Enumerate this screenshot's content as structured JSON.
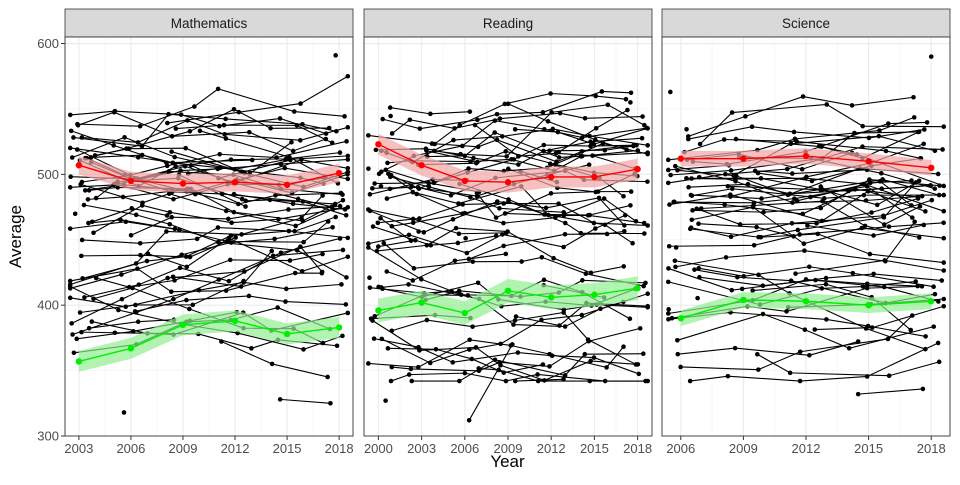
{
  "chart_data": {
    "type": "line",
    "xlabel": "Year",
    "ylabel": "Average",
    "ylim": [
      300,
      605
    ],
    "y_ticks": [
      300,
      400,
      500,
      600
    ],
    "grid": true,
    "legend": "none",
    "colors": {
      "top_group": "#ff0000",
      "top_band": "#f4a5a5",
      "bottom_group": "#00ee00",
      "bottom_band": "#90ee90",
      "countries": "#000000",
      "strip_bg": "#d9d9d9",
      "grid": "#ebebeb"
    },
    "panels": [
      {
        "title": "Mathematics",
        "xlim": [
          2002.2,
          2018.8
        ],
        "x_ticks": [
          2003,
          2006,
          2009,
          2012,
          2015,
          2018
        ],
        "top_group": {
          "x": [
            2003,
            2006,
            2009,
            2012,
            2015,
            2018
          ],
          "y": [
            507,
            495,
            493,
            494,
            492,
            501
          ],
          "band_halfwidth": 7
        },
        "bottom_group": {
          "x": [
            2003,
            2006,
            2009,
            2012,
            2015,
            2018
          ],
          "y": [
            357,
            367,
            385,
            388,
            378,
            383
          ],
          "band_halfwidth": 8
        },
        "outliers": [
          {
            "x": [
              2005.6
            ],
            "y": [
              318
            ]
          },
          {
            "x": [
              2014.6,
              2017.5
            ],
            "y": [
              328,
              325
            ]
          },
          {
            "x": [
              2017.8
            ],
            "y": [
              591
            ]
          }
        ]
      },
      {
        "title": "Reading",
        "xlim": [
          1999.0,
          2019.0
        ],
        "x_ticks": [
          2000,
          2003,
          2006,
          2009,
          2012,
          2015,
          2018
        ],
        "top_group": {
          "x": [
            2000,
            2003,
            2006,
            2009,
            2012,
            2015,
            2018
          ],
          "y": [
            523,
            507,
            495,
            494,
            498,
            498,
            504
          ],
          "band_halfwidth": 8
        },
        "bottom_group": {
          "x": [
            2000,
            2003,
            2006,
            2009,
            2012,
            2015,
            2018
          ],
          "y": [
            396,
            402,
            394,
            411,
            406,
            408,
            413
          ],
          "band_halfwidth": 9
        },
        "outliers": [
          {
            "x": [
              2006.3,
              2009.3
            ],
            "y": [
              312,
              370
            ]
          },
          {
            "x": [
              2000.5
            ],
            "y": [
              327
            ]
          },
          {
            "x": [
              2017.5
            ],
            "y": [
              555
            ]
          }
        ]
      },
      {
        "title": "Science",
        "xlim": [
          2005.1,
          2018.9
        ],
        "x_ticks": [
          2006,
          2009,
          2012,
          2015,
          2018
        ],
        "top_group": {
          "x": [
            2006,
            2009,
            2012,
            2015,
            2018
          ],
          "y": [
            512,
            512,
            514,
            510,
            505
          ],
          "band_halfwidth": 6
        },
        "bottom_group": {
          "x": [
            2006,
            2009,
            2012,
            2015,
            2018
          ],
          "y": [
            390,
            404,
            403,
            400,
            403
          ],
          "band_halfwidth": 6
        },
        "outliers": [
          {
            "x": [
              2014.5,
              2017.6
            ],
            "y": [
              332,
              336
            ]
          },
          {
            "x": [
              2005.5
            ],
            "y": [
              563
            ]
          },
          {
            "x": [
              2018.0
            ],
            "y": [
              590
            ]
          }
        ]
      }
    ]
  }
}
